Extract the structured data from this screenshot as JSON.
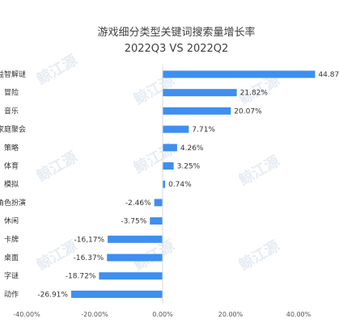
{
  "chart_data": {
    "type": "bar",
    "orientation": "horizontal",
    "title_line1": "游戏细分类型关键词搜索量增长率",
    "title_line2": "2022Q3 VS 2022Q2",
    "categories": [
      "益智解谜",
      "冒险",
      "音乐",
      "家庭聚会",
      "策略",
      "体育",
      "模拟",
      "角色扮演",
      "休闲",
      "卡牌",
      "桌面",
      "字谜",
      "动作"
    ],
    "values": [
      44.87,
      21.82,
      20.07,
      7.71,
      4.26,
      3.25,
      0.74,
      -2.46,
      -3.75,
      -16.17,
      -16.37,
      -18.72,
      -26.91
    ],
    "value_labels": [
      "44.87%",
      "21.82%",
      "20.07%",
      "7.71%",
      "4.26%",
      "3.25%",
      "0.74%",
      "-2.46%",
      "-3.75%",
      "-16,17%",
      "-16.37%",
      "-18.72%",
      "-26.91%"
    ],
    "xlim": [
      -40,
      50
    ],
    "x_ticks": [
      -40,
      -20,
      0,
      20,
      40
    ],
    "x_tick_labels": [
      "-40.00%",
      "-20.00%",
      "0.00%",
      "20.00%",
      "40.00%"
    ],
    "bar_color": "#3d8ff0",
    "grid": false,
    "legend": "none"
  },
  "watermark_text": "鲸江源"
}
